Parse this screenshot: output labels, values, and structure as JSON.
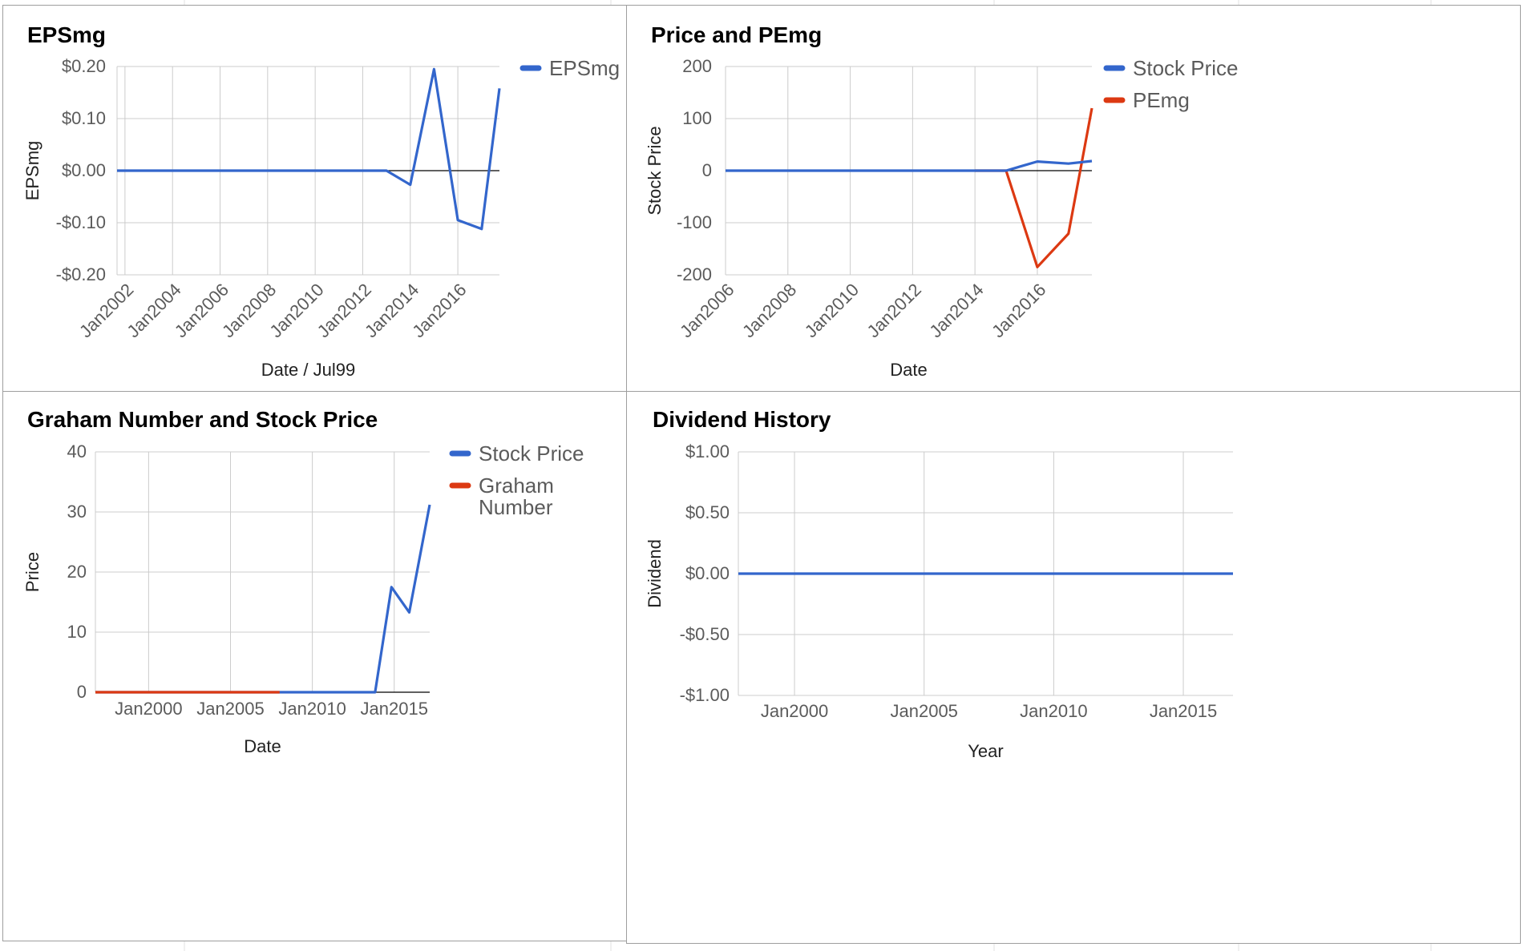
{
  "colors": {
    "blue": "#3366cc",
    "red": "#dc3912",
    "grid": "#cccccc",
    "baseline": "#000000"
  },
  "chart_data": [
    {
      "type": "line",
      "title": "EPSmg",
      "xlabel": "Date / Jul99",
      "ylabel": "EPSmg",
      "x_type": "date",
      "xlim": [
        "2001-09",
        "2017-10"
      ],
      "x_ticks": [
        "2002-01",
        "2004-01",
        "2006-01",
        "2008-01",
        "2010-01",
        "2012-01",
        "2014-01",
        "2016-01"
      ],
      "x_tick_labels": [
        "Jan2002",
        "Jan2004",
        "Jan2006",
        "Jan2008",
        "Jan2010",
        "Jan2012",
        "Jan2014",
        "Jan2016"
      ],
      "ylim": [
        -0.2,
        0.2
      ],
      "y_ticks": [
        0.2,
        0.1,
        0.0,
        -0.1,
        -0.2
      ],
      "y_tick_labels": [
        "$0.20",
        "$0.10",
        "$0.00",
        "-$0.10",
        "-$0.20"
      ],
      "grid": true,
      "legend": "right",
      "series": [
        {
          "name": "EPSmg",
          "color": "#3366cc",
          "points": [
            [
              "2001-09",
              0
            ],
            [
              "2003-01",
              0
            ],
            [
              "2005-01",
              0
            ],
            [
              "2007-01",
              0
            ],
            [
              "2009-01",
              0
            ],
            [
              "2011-01",
              0
            ],
            [
              "2013-01",
              0
            ],
            [
              "2014-01",
              -0.027
            ],
            [
              "2015-01",
              0.195
            ],
            [
              "2016-01",
              -0.095
            ],
            [
              "2017-01",
              -0.112
            ],
            [
              "2017-10",
              0.158
            ]
          ]
        }
      ]
    },
    {
      "type": "line",
      "title": "Price and PEmg",
      "xlabel": "Date",
      "ylabel": "Stock Price",
      "x_type": "date",
      "xlim": [
        "2006-01",
        "2017-10"
      ],
      "x_ticks": [
        "2006-01",
        "2008-01",
        "2010-01",
        "2012-01",
        "2014-01",
        "2016-01"
      ],
      "x_tick_labels": [
        "Jan2006",
        "Jan2008",
        "Jan2010",
        "Jan2012",
        "Jan2014",
        "Jan2016"
      ],
      "ylim": [
        -200,
        200
      ],
      "y_ticks": [
        200,
        100,
        0,
        -100,
        -200
      ],
      "y_tick_labels": [
        "200",
        "100",
        "0",
        "-100",
        "-200"
      ],
      "grid": true,
      "legend": "right",
      "series": [
        {
          "name": "PEmg",
          "color": "#dc3912",
          "points": [
            [
              "2014-01",
              0
            ],
            [
              "2015-01",
              0
            ],
            [
              "2016-01",
              -185
            ],
            [
              "2017-01",
              -121
            ],
            [
              "2017-10",
              120
            ]
          ]
        },
        {
          "name": "Stock Price",
          "color": "#3366cc",
          "points": [
            [
              "2006-01",
              0
            ],
            [
              "2008-01",
              0
            ],
            [
              "2010-01",
              0
            ],
            [
              "2012-01",
              0
            ],
            [
              "2014-01",
              0
            ],
            [
              "2015-01",
              0
            ],
            [
              "2016-01",
              17.5
            ],
            [
              "2017-01",
              13.5
            ],
            [
              "2017-10",
              18.5
            ]
          ]
        }
      ],
      "legend_order": [
        "Stock Price",
        "PEmg"
      ]
    },
    {
      "type": "line",
      "title": "Graham Number and Stock Price",
      "xlabel": "Date",
      "ylabel": "Price",
      "x_type": "date",
      "xlim": [
        "1996-10",
        "2017-03"
      ],
      "x_ticks": [
        "2000-01",
        "2005-01",
        "2010-01",
        "2015-01"
      ],
      "x_tick_labels": [
        "Jan2000",
        "Jan2005",
        "Jan2010",
        "Jan2015"
      ],
      "ylim": [
        0,
        40
      ],
      "y_ticks": [
        40,
        30,
        20,
        10,
        0
      ],
      "y_tick_labels": [
        "40",
        "30",
        "20",
        "10",
        "0"
      ],
      "grid": true,
      "legend": "right",
      "series": [
        {
          "name": "Stock Price",
          "color": "#3366cc",
          "points": [
            [
              "1996-10",
              0
            ],
            [
              "2000-01",
              0
            ],
            [
              "2005-01",
              0
            ],
            [
              "2010-01",
              0
            ],
            [
              "2013-11",
              0
            ],
            [
              "2014-11",
              17.5
            ],
            [
              "2015-12",
              13.3
            ],
            [
              "2017-03",
              31.2
            ]
          ]
        },
        {
          "name": "Graham Number",
          "color": "#dc3912",
          "points": [
            [
              "1996-10",
              0
            ],
            [
              "2000-01",
              0
            ],
            [
              "2005-01",
              0
            ],
            [
              "2008-01",
              0
            ]
          ]
        }
      ],
      "legend_labels": {
        "Graham Number": [
          "Graham",
          "Number"
        ]
      }
    },
    {
      "type": "line",
      "title": "Dividend History",
      "xlabel": "Year",
      "ylabel": "Dividend",
      "x_type": "date",
      "xlim": [
        "1997-11",
        "2016-12"
      ],
      "x_ticks": [
        "2000-01",
        "2005-01",
        "2010-01",
        "2015-01"
      ],
      "x_tick_labels": [
        "Jan2000",
        "Jan2005",
        "Jan2010",
        "Jan2015"
      ],
      "ylim": [
        -1.0,
        1.0
      ],
      "y_ticks": [
        1.0,
        0.5,
        0.0,
        -0.5,
        -1.0
      ],
      "y_tick_labels": [
        "$1.00",
        "$0.50",
        "$0.00",
        "-$0.50",
        "-$1.00"
      ],
      "grid": true,
      "legend": "none",
      "series": [
        {
          "color": "#3366cc",
          "points": [
            [
              "1997-11",
              0
            ],
            [
              "2000-01",
              0
            ],
            [
              "2005-01",
              0
            ],
            [
              "2010-01",
              0
            ],
            [
              "2015-01",
              0
            ],
            [
              "2016-12",
              0
            ]
          ]
        }
      ]
    }
  ]
}
